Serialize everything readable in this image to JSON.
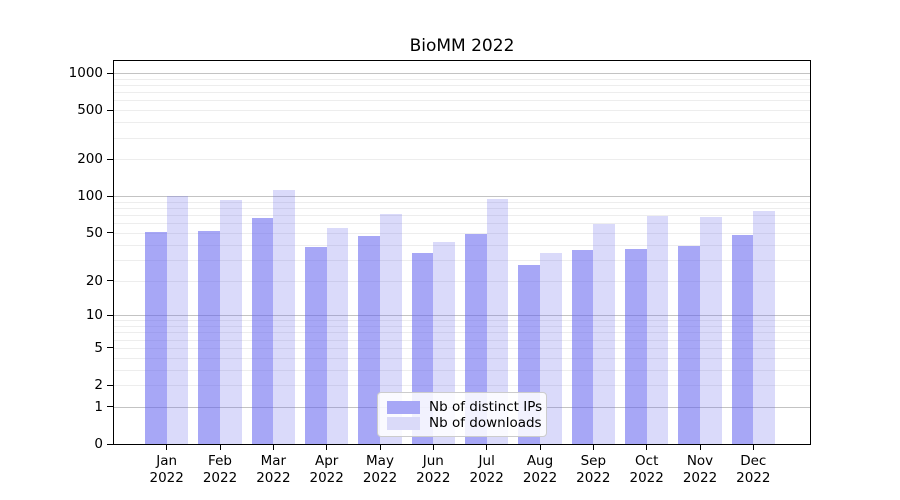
{
  "chart_data": {
    "type": "bar",
    "title": "BioMM 2022",
    "xlabel": "",
    "ylabel": "",
    "yscale": "log1p",
    "ylim": [
      0,
      1250
    ],
    "y_ticks": [
      0,
      1,
      2,
      5,
      10,
      20,
      50,
      100,
      200,
      500,
      1000
    ],
    "grid_major": [
      1,
      10,
      100,
      1000
    ],
    "grid_minor": [
      2,
      3,
      4,
      5,
      6,
      7,
      8,
      9,
      20,
      30,
      40,
      50,
      60,
      70,
      80,
      90,
      200,
      300,
      400,
      500,
      600,
      700,
      800,
      900
    ],
    "grid_major_color": "#c3c3c3",
    "grid_minor_color": "#ededed",
    "months": [
      "Jan",
      "Feb",
      "Mar",
      "Apr",
      "May",
      "Jun",
      "Jul",
      "Aug",
      "Sep",
      "Oct",
      "Nov",
      "Dec"
    ],
    "year_label": "2022",
    "categories": [
      "Jan 2022",
      "Feb 2022",
      "Mar 2022",
      "Apr 2022",
      "May 2022",
      "Jun 2022",
      "Jul 2022",
      "Aug 2022",
      "Sep 2022",
      "Oct 2022",
      "Nov 2022",
      "Dec 2022"
    ],
    "series": [
      {
        "name": "Nb of distinct IPs",
        "fill": "rgba(95,95,239,0.55)",
        "swatch": "#a7a7f6",
        "values": [
          51,
          52,
          66,
          38,
          47,
          34,
          49,
          27,
          36,
          37,
          39,
          48
        ]
      },
      {
        "name": "Nb of downloads",
        "fill": "rgba(107,107,235,0.25)",
        "swatch": "#dadaf9",
        "values": [
          101,
          93,
          113,
          55,
          71,
          42,
          94,
          34,
          59,
          69,
          67,
          75
        ]
      }
    ],
    "legend_position": "lower center"
  }
}
